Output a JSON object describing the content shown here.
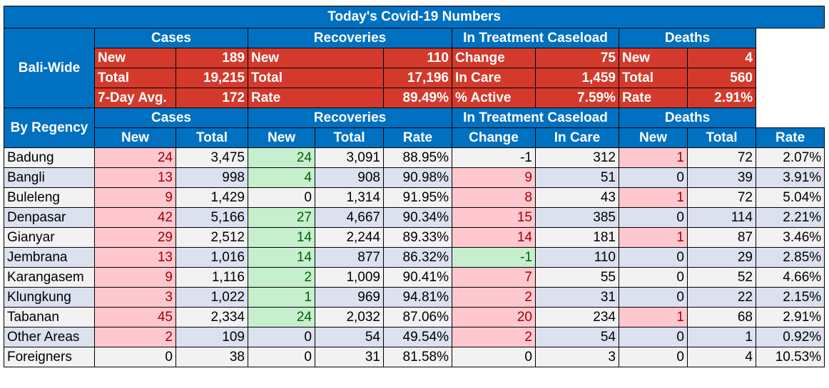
{
  "title": "Today's Covid-19 Numbers",
  "group_headers": [
    "Cases",
    "Recoveries",
    "In Treatment Caseload",
    "Deaths"
  ],
  "bali_wide": {
    "label": "Bali-Wide",
    "rows": [
      [
        [
          "New",
          "189"
        ],
        [
          "New",
          "110"
        ],
        [
          "Change",
          "75"
        ],
        [
          "New",
          "4"
        ]
      ],
      [
        [
          "Total",
          "19,215"
        ],
        [
          "Total",
          "17,196"
        ],
        [
          "In Care",
          "1,459"
        ],
        [
          "Total",
          "560"
        ]
      ],
      [
        [
          "7-Day Avg.",
          "172"
        ],
        [
          "Rate",
          "89.49%"
        ],
        [
          "% Active",
          "7.59%"
        ],
        [
          "Rate",
          "2.91%"
        ]
      ]
    ]
  },
  "by_regency": {
    "label": "By Regency",
    "sub_headers": [
      "New",
      "Total",
      "New",
      "Total",
      "Rate",
      "Change",
      "In Care",
      "New",
      "Total",
      "Rate"
    ],
    "rows": [
      {
        "name": "Badung",
        "values": [
          "24",
          "3,475",
          "24",
          "3,091",
          "88.95%",
          "-1",
          "312",
          "1",
          "72",
          "2.07%"
        ],
        "hl": [
          "red",
          "",
          "green",
          "",
          "",
          "",
          "",
          "red",
          "",
          ""
        ]
      },
      {
        "name": "Bangli",
        "values": [
          "13",
          "998",
          "4",
          "908",
          "90.98%",
          "9",
          "51",
          "0",
          "39",
          "3.91%"
        ],
        "hl": [
          "red",
          "",
          "green",
          "",
          "",
          "red",
          "",
          "",
          "",
          ""
        ]
      },
      {
        "name": "Buleleng",
        "values": [
          "9",
          "1,429",
          "0",
          "1,314",
          "91.95%",
          "8",
          "43",
          "1",
          "72",
          "5.04%"
        ],
        "hl": [
          "red",
          "",
          "",
          "",
          "",
          "red",
          "",
          "red",
          "",
          ""
        ]
      },
      {
        "name": "Denpasar",
        "values": [
          "42",
          "5,166",
          "27",
          "4,667",
          "90.34%",
          "15",
          "385",
          "0",
          "114",
          "2.21%"
        ],
        "hl": [
          "red",
          "",
          "green",
          "",
          "",
          "red",
          "",
          "",
          "",
          ""
        ]
      },
      {
        "name": "Gianyar",
        "values": [
          "29",
          "2,512",
          "14",
          "2,244",
          "89.33%",
          "14",
          "181",
          "1",
          "87",
          "3.46%"
        ],
        "hl": [
          "red",
          "",
          "green",
          "",
          "",
          "red",
          "",
          "red",
          "",
          ""
        ]
      },
      {
        "name": "Jembrana",
        "values": [
          "13",
          "1,016",
          "14",
          "877",
          "86.32%",
          "-1",
          "110",
          "0",
          "29",
          "2.85%"
        ],
        "hl": [
          "red",
          "",
          "green",
          "",
          "",
          "green",
          "",
          "",
          "",
          ""
        ]
      },
      {
        "name": "Karangasem",
        "values": [
          "9",
          "1,116",
          "2",
          "1,009",
          "90.41%",
          "7",
          "55",
          "0",
          "52",
          "4.66%"
        ],
        "hl": [
          "red",
          "",
          "green",
          "",
          "",
          "red",
          "",
          "",
          "",
          ""
        ]
      },
      {
        "name": "Klungkung",
        "values": [
          "3",
          "1,022",
          "1",
          "969",
          "94.81%",
          "2",
          "31",
          "0",
          "22",
          "2.15%"
        ],
        "hl": [
          "red",
          "",
          "green",
          "",
          "",
          "red",
          "",
          "",
          "",
          ""
        ]
      },
      {
        "name": "Tabanan",
        "values": [
          "45",
          "2,334",
          "24",
          "2,032",
          "87.06%",
          "20",
          "234",
          "1",
          "68",
          "2.91%"
        ],
        "hl": [
          "red",
          "",
          "green",
          "",
          "",
          "red",
          "",
          "red",
          "",
          ""
        ]
      },
      {
        "name": "Other Areas",
        "values": [
          "2",
          "109",
          "0",
          "54",
          "49.54%",
          "2",
          "54",
          "0",
          "1",
          "0.92%"
        ],
        "hl": [
          "red",
          "",
          "",
          "",
          "",
          "red",
          "",
          "",
          "",
          ""
        ]
      },
      {
        "name": "Foreigners",
        "values": [
          "0",
          "38",
          "0",
          "31",
          "81.58%",
          "0",
          "3",
          "0",
          "4",
          "10.53%"
        ],
        "hl": [
          "",
          "",
          "",
          "",
          "",
          "",
          "",
          "",
          "",
          ""
        ]
      }
    ]
  }
}
